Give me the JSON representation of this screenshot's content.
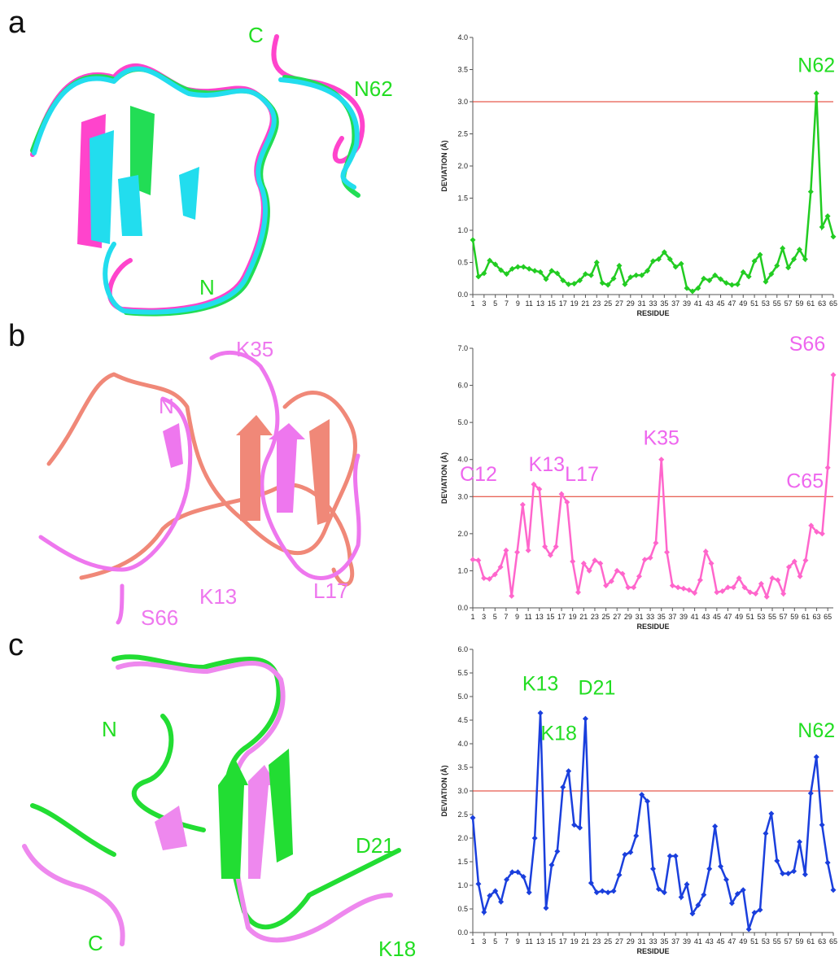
{
  "panels": [
    {
      "letter": "a",
      "structure_labels": [
        "C",
        "N62",
        "N"
      ]
    },
    {
      "letter": "b",
      "structure_labels": [
        "K35",
        "N",
        "K13",
        "L17",
        "S66"
      ]
    },
    {
      "letter": "c",
      "structure_labels": [
        "N",
        "D21",
        "C",
        "K18"
      ]
    }
  ],
  "chart_data": [
    {
      "type": "line",
      "x_label": "RESIDUE",
      "y_label": "DEVIATION (Å)",
      "x": [
        1,
        2,
        3,
        4,
        5,
        6,
        7,
        8,
        9,
        10,
        11,
        12,
        13,
        14,
        15,
        16,
        17,
        18,
        19,
        20,
        21,
        22,
        23,
        24,
        25,
        26,
        27,
        28,
        29,
        30,
        31,
        32,
        33,
        34,
        35,
        36,
        37,
        38,
        39,
        40,
        41,
        42,
        43,
        44,
        45,
        46,
        47,
        48,
        49,
        50,
        51,
        52,
        53,
        54,
        55,
        56,
        57,
        58,
        59,
        60,
        61,
        62,
        63,
        64,
        65
      ],
      "xlim": [
        1,
        65
      ],
      "xticks": [
        1,
        3,
        5,
        7,
        9,
        11,
        13,
        15,
        17,
        19,
        21,
        23,
        25,
        27,
        29,
        31,
        33,
        35,
        37,
        39,
        41,
        43,
        45,
        47,
        49,
        51,
        53,
        55,
        57,
        59,
        61,
        63,
        65
      ],
      "color": "#22cc22",
      "values": [
        0.85,
        0.28,
        0.33,
        0.53,
        0.47,
        0.38,
        0.32,
        0.4,
        0.43,
        0.43,
        0.4,
        0.37,
        0.35,
        0.24,
        0.37,
        0.33,
        0.22,
        0.16,
        0.17,
        0.22,
        0.32,
        0.3,
        0.5,
        0.18,
        0.15,
        0.25,
        0.45,
        0.16,
        0.27,
        0.3,
        0.3,
        0.37,
        0.52,
        0.55,
        0.66,
        0.55,
        0.43,
        0.48,
        0.1,
        0.05,
        0.1,
        0.25,
        0.22,
        0.3,
        0.24,
        0.18,
        0.15,
        0.16,
        0.35,
        0.28,
        0.52,
        0.62,
        0.2,
        0.32,
        0.45,
        0.72,
        0.42,
        0.55,
        0.7,
        0.55,
        1.6,
        3.13,
        1.05,
        1.22,
        0.9
      ],
      "ylim": [
        0,
        4
      ],
      "yticks": [
        {
          "value": 0,
          "label": "0.0"
        },
        0.5,
        {
          "value": 1,
          "label": "1.0"
        },
        1.5,
        {
          "value": 2,
          "label": "2.0"
        },
        2.5,
        {
          "value": 3,
          "label": "3.0"
        },
        3.5,
        {
          "value": 4,
          "label": "4.0"
        }
      ],
      "reference_line": {
        "value": 3,
        "color": "#e03020"
      },
      "annotation_color": "#22dd22",
      "annotations": [
        {
          "text": "N62",
          "x": 62
        }
      ]
    },
    {
      "type": "line",
      "x_label": "RESIDUE",
      "y_label": "DEVIATION (Å)",
      "x": [
        1,
        2,
        3,
        4,
        5,
        6,
        7,
        8,
        9,
        10,
        11,
        12,
        13,
        14,
        15,
        16,
        17,
        18,
        19,
        20,
        21,
        22,
        23,
        24,
        25,
        26,
        27,
        28,
        29,
        30,
        31,
        32,
        33,
        34,
        35,
        36,
        37,
        38,
        39,
        40,
        41,
        42,
        43,
        44,
        45,
        46,
        47,
        48,
        49,
        50,
        51,
        52,
        53,
        54,
        55,
        56,
        57,
        58,
        59,
        60,
        61,
        62,
        63,
        64,
        65,
        66
      ],
      "xlim": [
        1,
        66
      ],
      "xticks": [
        1,
        3,
        5,
        7,
        9,
        11,
        13,
        15,
        17,
        19,
        21,
        23,
        25,
        27,
        29,
        31,
        33,
        35,
        37,
        39,
        41,
        43,
        45,
        47,
        49,
        51,
        53,
        55,
        57,
        59,
        61,
        63,
        65
      ],
      "color": "#ff66cc",
      "values": [
        1.3,
        1.28,
        0.8,
        0.78,
        0.9,
        1.1,
        1.55,
        0.32,
        1.5,
        2.78,
        1.55,
        3.33,
        3.2,
        1.65,
        1.42,
        1.65,
        3.07,
        2.85,
        1.25,
        0.42,
        1.2,
        1.0,
        1.28,
        1.2,
        0.6,
        0.72,
        1.0,
        0.92,
        0.55,
        0.55,
        0.85,
        1.3,
        1.35,
        1.75,
        4.0,
        1.5,
        0.6,
        0.55,
        0.52,
        0.48,
        0.4,
        0.75,
        1.52,
        1.2,
        0.42,
        0.45,
        0.55,
        0.55,
        0.8,
        0.55,
        0.42,
        0.38,
        0.65,
        0.3,
        0.8,
        0.75,
        0.38,
        1.1,
        1.25,
        0.85,
        1.28,
        2.22,
        2.05,
        2.0,
        3.78,
        6.28
      ],
      "ylim": [
        0,
        7
      ],
      "yticks": [
        {
          "value": 0,
          "label": "0.0"
        },
        {
          "value": 1,
          "label": "1.0"
        },
        {
          "value": 2,
          "label": "2.0"
        },
        {
          "value": 3,
          "label": "3.0"
        },
        {
          "value": 4,
          "label": "4.0"
        },
        {
          "value": 5,
          "label": "5.0"
        },
        {
          "value": 6,
          "label": "6.0"
        },
        {
          "value": 7,
          "label": "7.0"
        }
      ],
      "reference_line": {
        "value": 3,
        "color": "#e03020"
      },
      "annotation_color": "#ee66ee",
      "annotations": [
        {
          "text": "C12",
          "x": 12
        },
        {
          "text": "K13",
          "x": 13
        },
        {
          "text": "L17",
          "x": 17
        },
        {
          "text": "K35",
          "x": 35
        },
        {
          "text": "C65",
          "x": 65
        },
        {
          "text": "S66",
          "x": 66
        }
      ]
    },
    {
      "type": "line",
      "x_label": "RESIDUE",
      "y_label": "DEVIATION (Å)",
      "x": [
        1,
        2,
        3,
        4,
        5,
        6,
        7,
        8,
        9,
        10,
        11,
        12,
        13,
        14,
        15,
        16,
        17,
        18,
        19,
        20,
        21,
        22,
        23,
        24,
        25,
        26,
        27,
        28,
        29,
        30,
        31,
        32,
        33,
        34,
        35,
        36,
        37,
        38,
        39,
        40,
        41,
        42,
        43,
        44,
        45,
        46,
        47,
        48,
        49,
        50,
        51,
        52,
        53,
        54,
        55,
        56,
        57,
        58,
        59,
        60,
        61,
        62,
        63,
        64,
        65
      ],
      "xlim": [
        1,
        65
      ],
      "xticks": [
        1,
        3,
        5,
        7,
        9,
        11,
        13,
        15,
        17,
        19,
        21,
        23,
        25,
        27,
        29,
        31,
        33,
        35,
        37,
        39,
        41,
        43,
        45,
        47,
        49,
        51,
        53,
        55,
        57,
        59,
        61,
        63,
        65
      ],
      "color": "#1a3fdd",
      "values": [
        2.43,
        1.03,
        0.43,
        0.78,
        0.88,
        0.65,
        1.12,
        1.28,
        1.28,
        1.18,
        0.85,
        2.0,
        4.65,
        0.52,
        1.43,
        1.72,
        3.08,
        3.42,
        2.28,
        2.22,
        4.53,
        1.05,
        0.85,
        0.88,
        0.85,
        0.88,
        1.22,
        1.65,
        1.7,
        2.05,
        2.92,
        2.78,
        1.35,
        0.92,
        0.85,
        1.62,
        1.62,
        0.75,
        1.02,
        0.4,
        0.58,
        0.8,
        1.35,
        2.25,
        1.4,
        1.12,
        0.62,
        0.82,
        0.9,
        0.07,
        0.42,
        0.48,
        2.1,
        2.52,
        1.52,
        1.25,
        1.25,
        1.3,
        1.92,
        1.23,
        2.95,
        3.72,
        2.28,
        1.48,
        0.9
      ],
      "ylim": [
        0,
        6
      ],
      "yticks": [
        {
          "value": 0,
          "label": "0.0"
        },
        0.5,
        {
          "value": 1,
          "label": "1.0"
        },
        1.5,
        {
          "value": 2,
          "label": "2.0"
        },
        2.5,
        {
          "value": 3,
          "label": "3.0"
        },
        3.5,
        {
          "value": 4,
          "label": "4.0"
        },
        4.5,
        {
          "value": 5,
          "label": "5.0"
        },
        5.5,
        {
          "value": 6,
          "label": "6.0"
        }
      ],
      "reference_line": {
        "value": 3,
        "color": "#e03020"
      },
      "annotation_color": "#22dd22",
      "annotations": [
        {
          "text": "K13",
          "x": 13
        },
        {
          "text": "K18",
          "x": 18
        },
        {
          "text": "D21",
          "x": 21
        },
        {
          "text": "N62",
          "x": 62
        }
      ]
    }
  ]
}
